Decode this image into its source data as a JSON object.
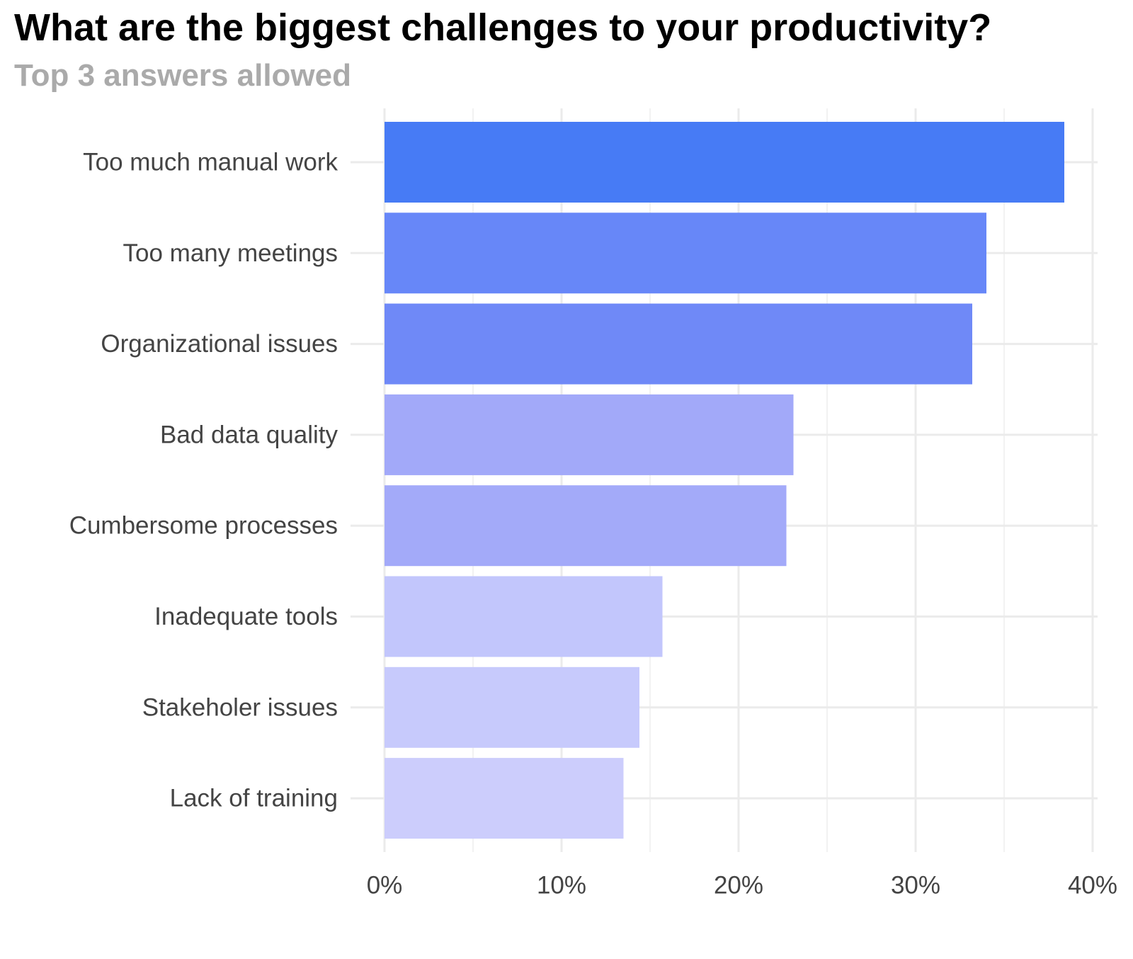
{
  "chart_data": {
    "type": "bar",
    "orientation": "horizontal",
    "title": "What are the biggest challenges to your productivity?",
    "subtitle": "Top 3 answers allowed",
    "categories": [
      "Too much manual work",
      "Too many meetings",
      "Organizational issues",
      "Bad data quality",
      "Cumbersome processes",
      "Inadequate tools",
      "Stakeholer issues",
      "Lack of training"
    ],
    "values": [
      38.4,
      34.0,
      33.2,
      23.1,
      22.7,
      15.7,
      14.4,
      13.5
    ],
    "colors": [
      "#477bf5",
      "#6787f8",
      "#6f89f7",
      "#a2a9f9",
      "#a3aaf9",
      "#c2c6fc",
      "#c7cafc",
      "#cccdfc"
    ],
    "xlim": [
      0,
      40
    ],
    "x_ticks": [
      0,
      10,
      20,
      30,
      40
    ],
    "x_tick_labels": [
      "0%",
      "10%",
      "20%",
      "30%",
      "40%"
    ],
    "xlabel": "",
    "ylabel": "",
    "grid": true,
    "legend": "none"
  }
}
